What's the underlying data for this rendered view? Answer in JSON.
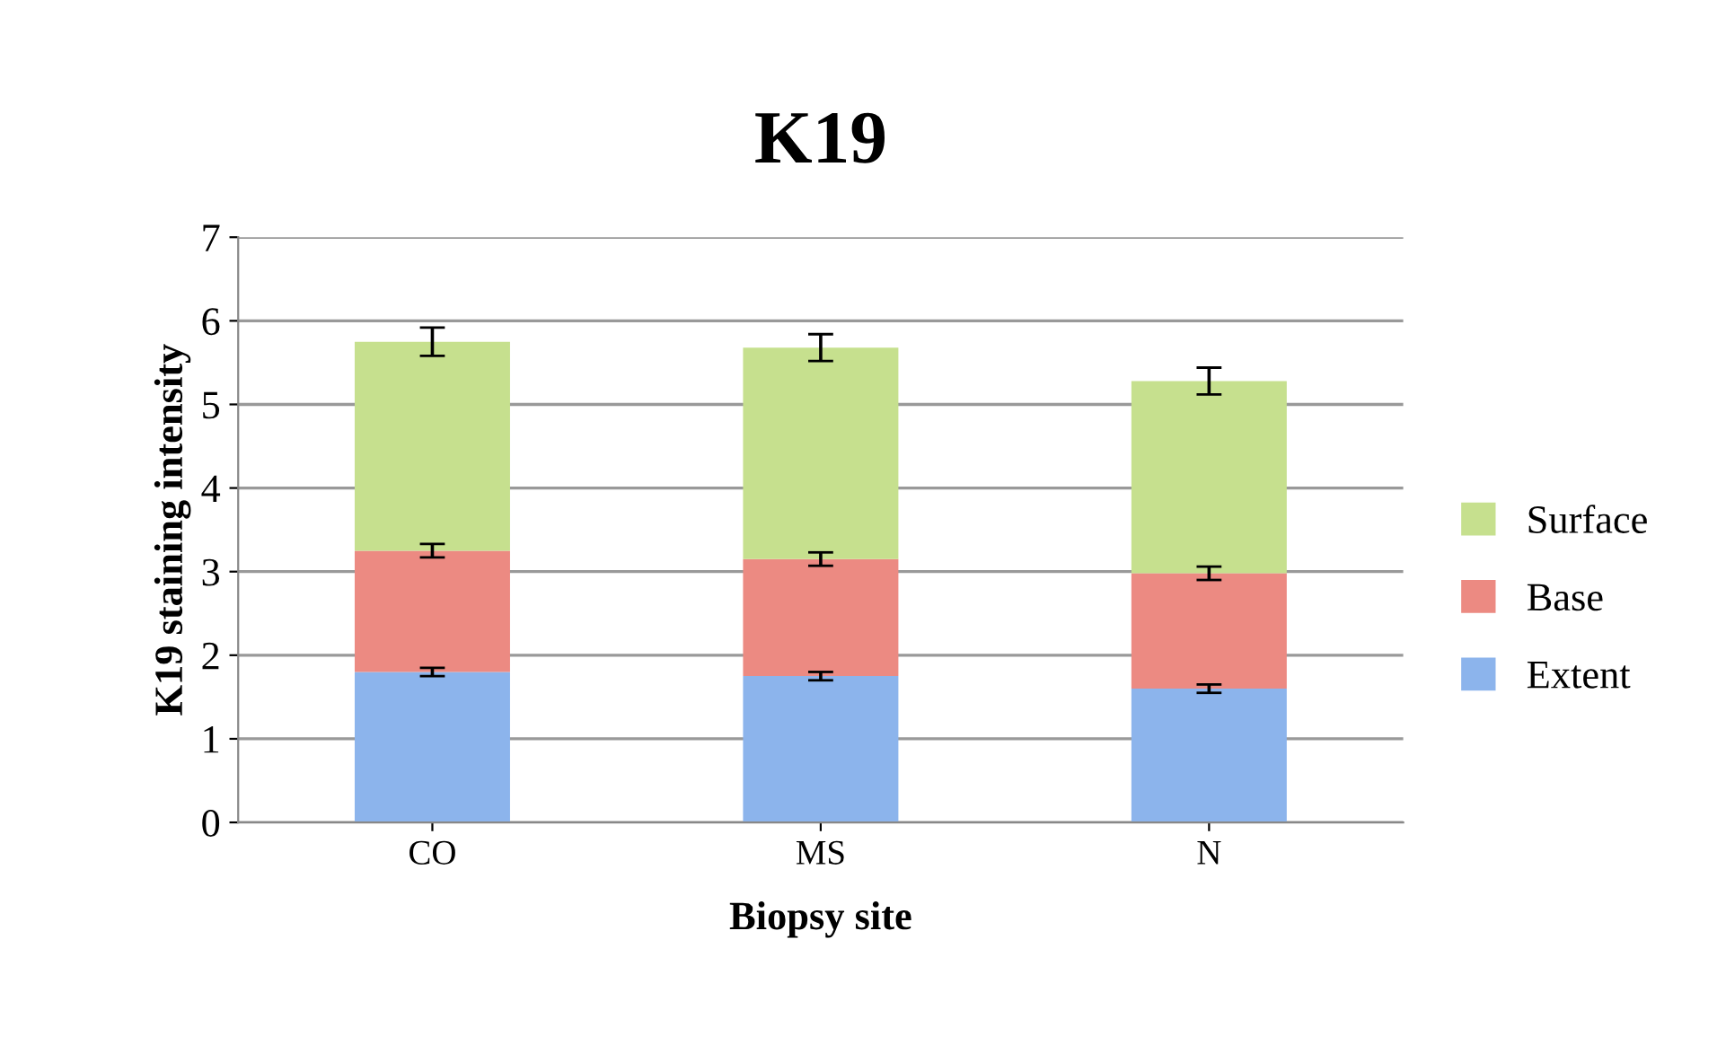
{
  "chart_data": {
    "type": "bar",
    "title": "K19",
    "xlabel": "Biopsy site",
    "ylabel": "K19 staining intensity",
    "categories": [
      "CO",
      "MS",
      "N"
    ],
    "stacked": true,
    "series": [
      {
        "name": "Extent",
        "color": "#8cb4ec",
        "values": [
          1.8,
          1.75,
          1.6
        ],
        "errors": [
          0.05,
          0.05,
          0.05
        ]
      },
      {
        "name": "Base",
        "color": "#ec8a82",
        "values": [
          1.45,
          1.4,
          1.38
        ],
        "errors": [
          0.08,
          0.08,
          0.08
        ]
      },
      {
        "name": "Surface",
        "color": "#c6e08e",
        "values": [
          2.5,
          2.53,
          2.3
        ],
        "errors": [
          0.17,
          0.16,
          0.16
        ]
      }
    ],
    "ylim": [
      0,
      7
    ],
    "yticks": [
      0,
      1,
      2,
      3,
      4,
      5,
      6,
      7
    ],
    "grid": "y",
    "legend": "right"
  }
}
